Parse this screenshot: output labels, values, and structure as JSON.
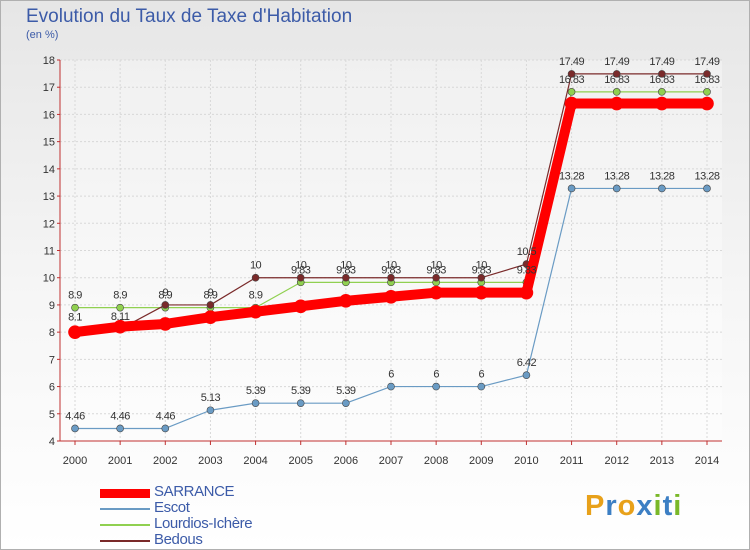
{
  "title": "Evolution du Taux de Taxe d'Habitation",
  "unit_label": "(en %)",
  "logo": {
    "letters": [
      "P",
      "r",
      "o",
      "x",
      "i",
      "t",
      "i"
    ],
    "colors": [
      "#e8a11a",
      "#3c7fc4",
      "#e8a11a",
      "#3c7fc4",
      "#7ab829",
      "#3c7fc4",
      "#7ab829"
    ]
  },
  "chart_data": {
    "type": "line",
    "x": [
      2000,
      2001,
      2002,
      2003,
      2004,
      2005,
      2006,
      2007,
      2008,
      2009,
      2010,
      2011,
      2012,
      2013,
      2014
    ],
    "ylim": [
      4,
      18
    ],
    "yticks": [
      4,
      5,
      6,
      7,
      8,
      9,
      10,
      11,
      12,
      13,
      14,
      15,
      16,
      17,
      18
    ],
    "grid": true,
    "legend_position": "bottom-left",
    "series": [
      {
        "name": "SARRANCE",
        "color": "#ff0000",
        "values": [
          8.0,
          8.2,
          8.3,
          8.55,
          8.75,
          8.95,
          9.15,
          9.3,
          9.45,
          9.45,
          9.45,
          16.4,
          16.4,
          16.4,
          16.4
        ],
        "labels": null
      },
      {
        "name": "Escot",
        "color": "#6a9bc4",
        "values": [
          4.46,
          4.46,
          4.46,
          5.13,
          5.39,
          5.39,
          5.39,
          6,
          6,
          6,
          6.42,
          13.28,
          13.28,
          13.28,
          13.28
        ],
        "labels": [
          "4.46",
          "4.46",
          "4.46",
          "5.13",
          "5.39",
          "5.39",
          "5.39",
          "6",
          "6",
          "6",
          "6.42",
          "13.28",
          "13.28",
          "13.28",
          "13.28"
        ]
      },
      {
        "name": "Lourdios-Ichère",
        "color": "#90d050",
        "values": [
          8.9,
          8.9,
          8.9,
          8.9,
          8.9,
          9.83,
          9.83,
          9.83,
          9.83,
          9.83,
          9.83,
          16.83,
          16.83,
          16.83,
          16.83
        ],
        "labels": [
          "8.9",
          "8.9",
          "8.9",
          "8.9",
          "8.9",
          "9.83",
          "9.83",
          "9.83",
          "9.83",
          "9.83",
          "9.83",
          "16.83",
          "16.83",
          "16.83",
          "16.83"
        ]
      },
      {
        "name": "Bedous",
        "color": "#7a2a2a",
        "values": [
          8.1,
          8.11,
          9.0,
          9.0,
          10,
          10,
          10,
          10,
          10,
          10,
          10.5,
          17.49,
          17.49,
          17.49,
          17.49
        ],
        "labels": [
          "8.1",
          "8.11",
          "9",
          "9",
          "10",
          "10",
          "10",
          "10",
          "10",
          "10",
          "10.5",
          "17.49",
          "17.49",
          "17.49",
          "17.49"
        ]
      }
    ]
  }
}
